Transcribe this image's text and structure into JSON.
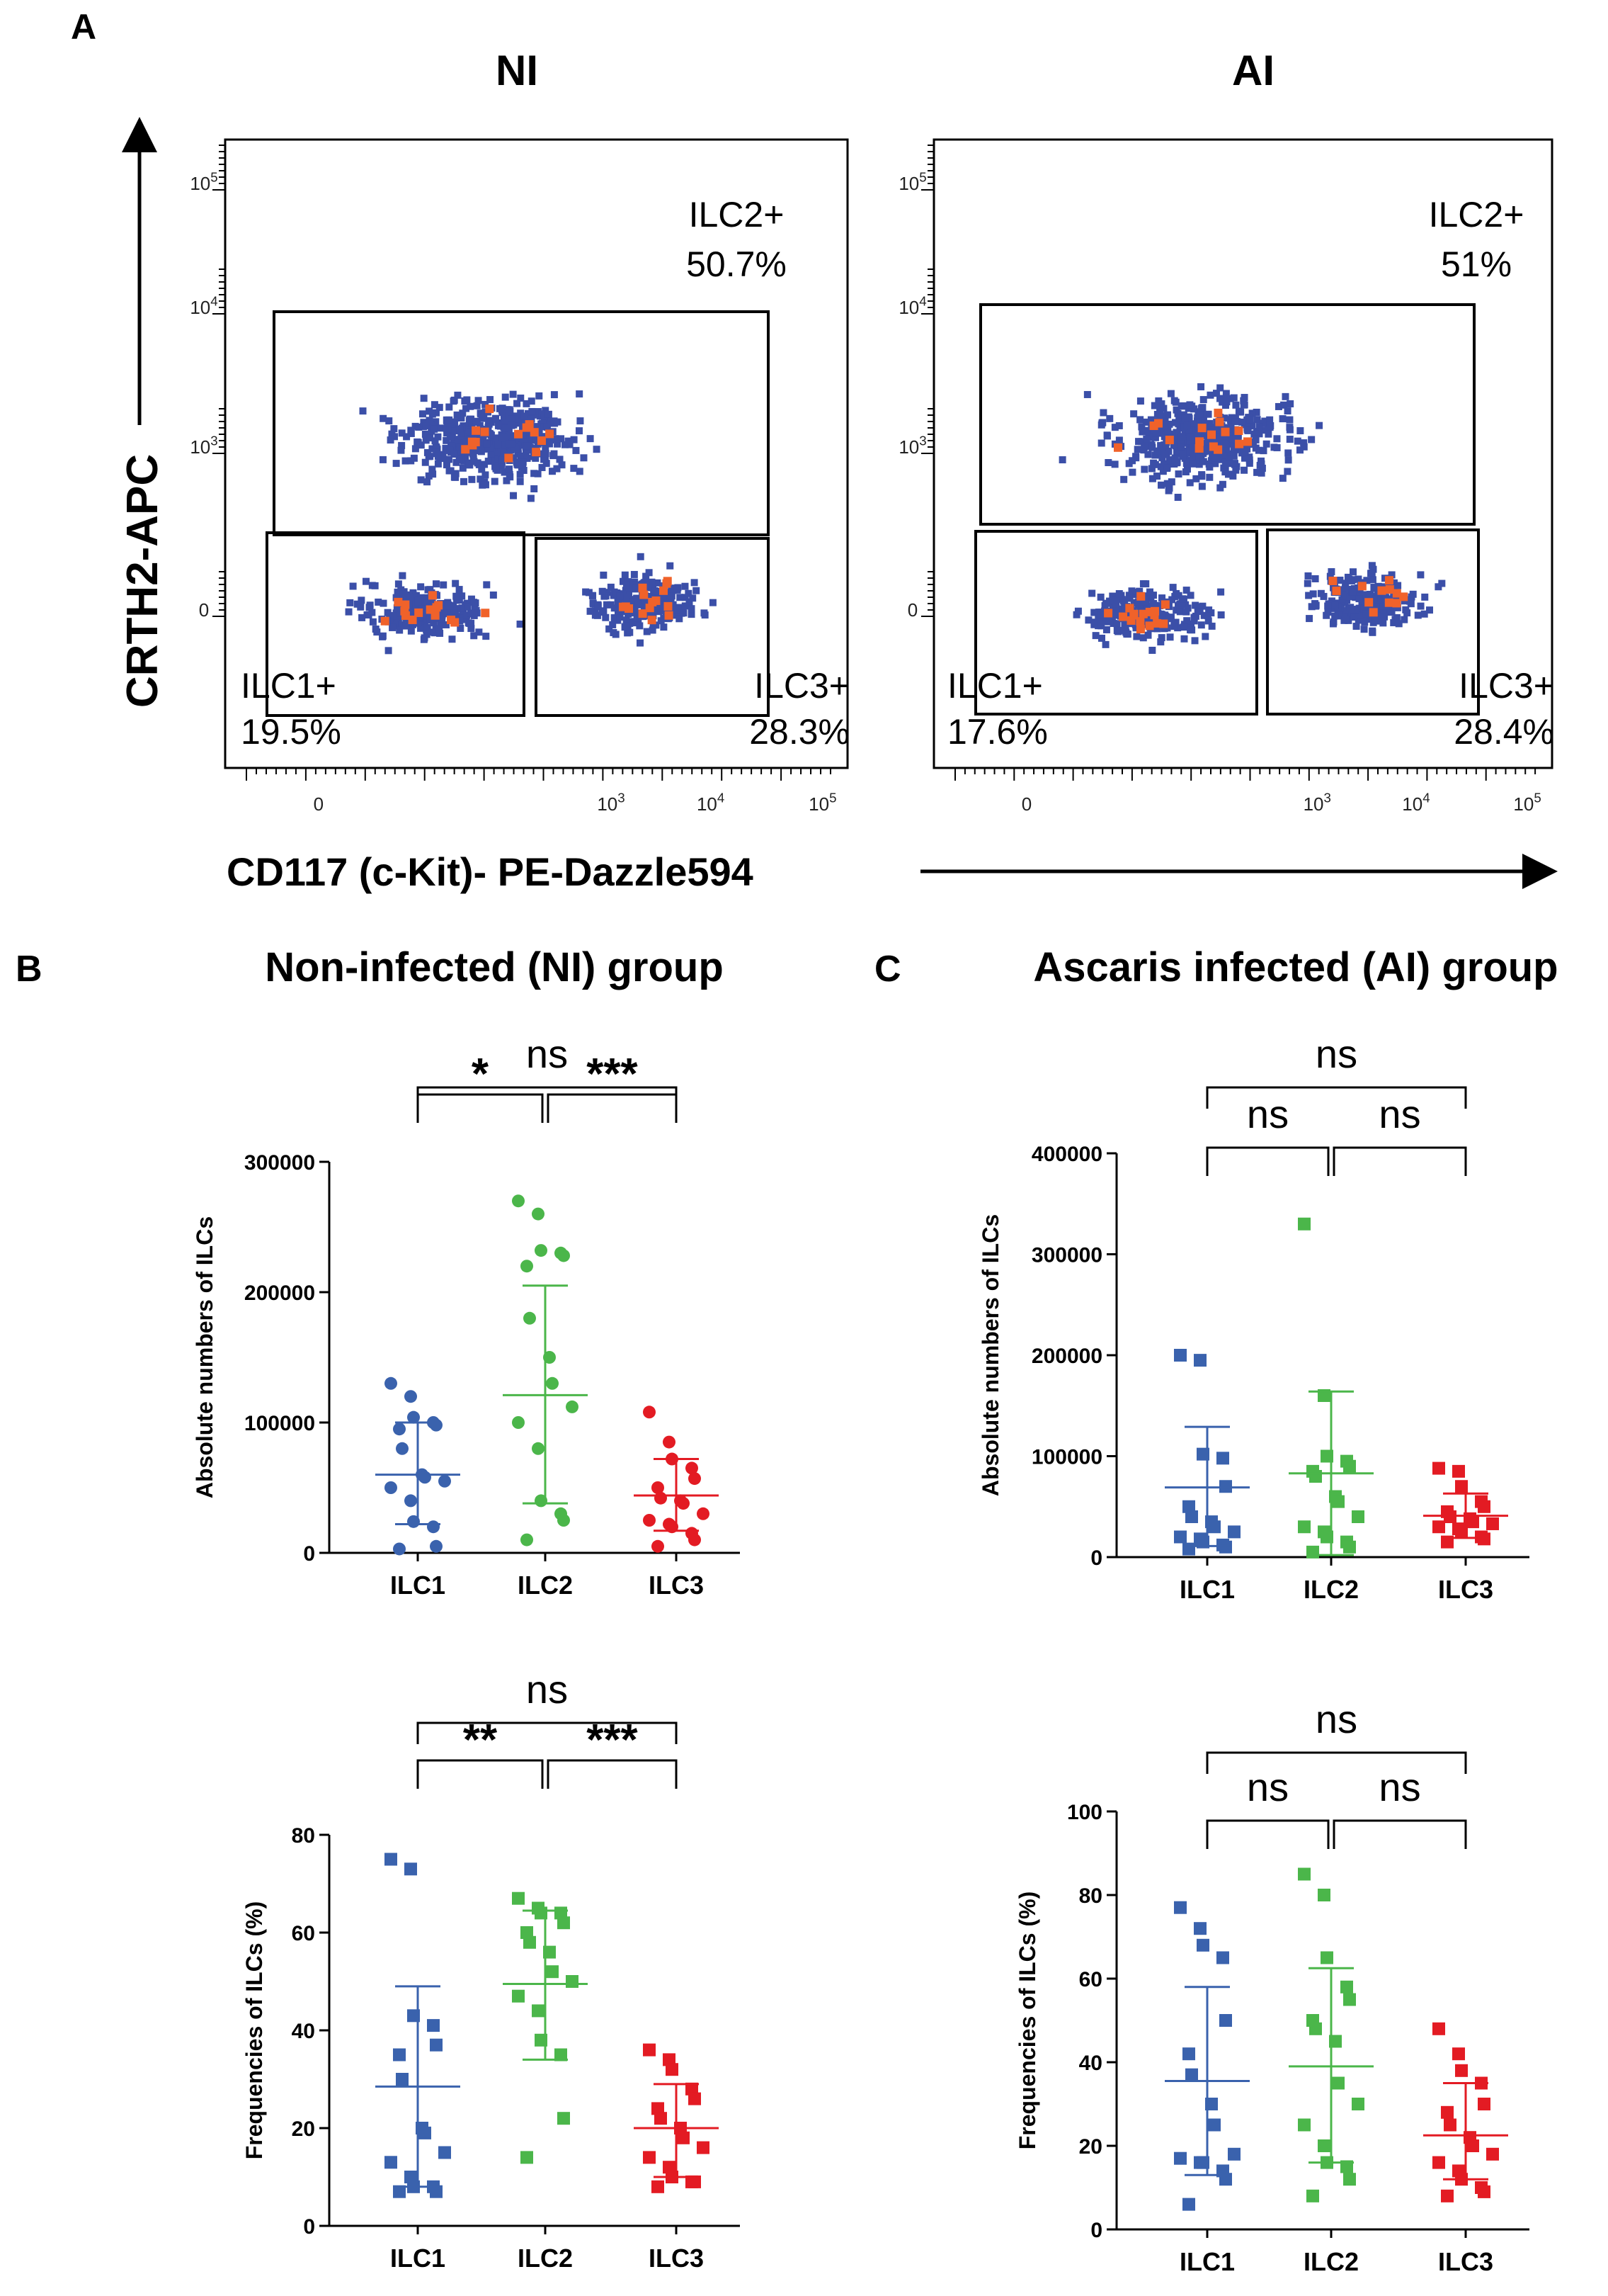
{
  "figure": {
    "panel_letters": {
      "a": "A",
      "b": "B",
      "c": "C"
    },
    "flow": {
      "titles": [
        "NI",
        "AI"
      ],
      "ylabel": "CRTH2-APC",
      "xlabel": "CD117 (c-Kit)- PE-Dazzle594",
      "tick_labels": [
        "10^5",
        "10^4",
        "10^3",
        "0"
      ],
      "x_tick_labels": [
        "0",
        "10^3",
        "10^4",
        "10^5"
      ]
    },
    "titles": {
      "b": "Non-infected (NI) group",
      "c": "Ascaris infected (AI) group"
    },
    "colors": {
      "ILC1": "#3a62ad",
      "ILC2": "#4bb64a",
      "ILC3": "#e31b23",
      "flow_blue": "#3b4fa8",
      "flow_orange": "#f0622a"
    }
  },
  "chart_data": [
    {
      "type": "flow-cytometry",
      "panel": "A",
      "title": "NI",
      "xlabel": "CD117 (c-Kit)- PE-Dazzle594",
      "ylabel": "CRTH2-APC",
      "gates": [
        {
          "name": "ILC2+",
          "percent": "50.7%"
        },
        {
          "name": "ILC1+",
          "percent": "19.5%"
        },
        {
          "name": "ILC3+",
          "percent": "28.3%"
        }
      ]
    },
    {
      "type": "flow-cytometry",
      "panel": "A",
      "title": "AI",
      "xlabel": "CD117 (c-Kit)- PE-Dazzle594",
      "ylabel": "CRTH2-APC",
      "gates": [
        {
          "name": "ILC2+",
          "percent": "51%"
        },
        {
          "name": "ILC1+",
          "percent": "17.6%"
        },
        {
          "name": "ILC3+",
          "percent": "28.4%"
        }
      ]
    },
    {
      "type": "scatter",
      "panel": "B",
      "group_title": "Non-infected (NI) group",
      "ylabel": "Absolute numbers of ILCs",
      "ylim": [
        0,
        300000
      ],
      "yticks": [
        0,
        100000,
        200000,
        300000
      ],
      "categories": [
        "ILC1",
        "ILC2",
        "ILC3"
      ],
      "marker": "circle",
      "series": [
        {
          "name": "ILC1",
          "values": [
            130000,
            120000,
            104000,
            100000,
            98000,
            95000,
            80000,
            60000,
            58000,
            55000,
            50000,
            40000,
            24000,
            20000,
            5000,
            3000
          ],
          "mean": 60000,
          "sd_low": 22000,
          "sd_high": 100000
        },
        {
          "name": "ILC2",
          "values": [
            270000,
            260000,
            232000,
            230000,
            228000,
            220000,
            180000,
            150000,
            130000,
            112000,
            100000,
            80000,
            40000,
            30000,
            25000,
            10000
          ],
          "mean": 121000,
          "sd_low": 38000,
          "sd_high": 205000
        },
        {
          "name": "ILC3",
          "values": [
            108000,
            85000,
            72000,
            65000,
            57000,
            50000,
            42000,
            40000,
            38000,
            30000,
            25000,
            22000,
            20000,
            15000,
            10000,
            5000
          ],
          "mean": 44000,
          "sd_low": 17000,
          "sd_high": 72000
        }
      ],
      "comparisons": [
        {
          "pair": [
            "ILC1",
            "ILC2"
          ],
          "label": "*"
        },
        {
          "pair": [
            "ILC2",
            "ILC3"
          ],
          "label": "***"
        },
        {
          "pair": [
            "ILC1",
            "ILC3"
          ],
          "label": "ns"
        }
      ]
    },
    {
      "type": "scatter",
      "panel": "B",
      "group_title": "Non-infected (NI) group",
      "ylabel": "Frequencies of ILCs (%)",
      "ylim": [
        0,
        80
      ],
      "yticks": [
        0,
        20,
        40,
        60,
        80
      ],
      "categories": [
        "ILC1",
        "ILC2",
        "ILC3"
      ],
      "marker": "square",
      "series": [
        {
          "name": "ILC1",
          "values": [
            75,
            73,
            43,
            41,
            37,
            35,
            30,
            20,
            19,
            15,
            13,
            10,
            8,
            8,
            7,
            7
          ],
          "mean": 28.5,
          "sd_low": 8,
          "sd_high": 49
        },
        {
          "name": "ILC2",
          "values": [
            67,
            65,
            64,
            64,
            62,
            60,
            58,
            56,
            52,
            50,
            47,
            44,
            38,
            35,
            22,
            14
          ],
          "mean": 49.5,
          "sd_low": 34,
          "sd_high": 64.5
        },
        {
          "name": "ILC3",
          "values": [
            36,
            34,
            32,
            28,
            26,
            24,
            22,
            20,
            18,
            16,
            14,
            12,
            10,
            9,
            9,
            8
          ],
          "mean": 20,
          "sd_low": 10,
          "sd_high": 29
        }
      ],
      "comparisons": [
        {
          "pair": [
            "ILC1",
            "ILC2"
          ],
          "label": "**"
        },
        {
          "pair": [
            "ILC2",
            "ILC3"
          ],
          "label": "***"
        },
        {
          "pair": [
            "ILC1",
            "ILC3"
          ],
          "label": "ns"
        }
      ]
    },
    {
      "type": "scatter",
      "panel": "C",
      "group_title": "Ascaris infected (AI) group",
      "ylabel": "Absolute numbers of ILCs",
      "ylim": [
        0,
        400000
      ],
      "yticks": [
        0,
        100000,
        200000,
        300000,
        400000
      ],
      "categories": [
        "ILC1",
        "ILC2",
        "ILC3"
      ],
      "marker": "square",
      "series": [
        {
          "name": "ILC1",
          "values": [
            200000,
            195000,
            102000,
            98000,
            70000,
            50000,
            40000,
            35000,
            30000,
            25000,
            20000,
            18000,
            15000,
            12000,
            10000,
            8000
          ],
          "mean": 69000,
          "sd_low": 11000,
          "sd_high": 129000
        },
        {
          "name": "ILC2",
          "values": [
            330000,
            160000,
            100000,
            95000,
            90000,
            85000,
            80000,
            60000,
            55000,
            40000,
            30000,
            25000,
            20000,
            15000,
            10000,
            5000
          ],
          "mean": 83000,
          "sd_low": 2000,
          "sd_high": 164000
        },
        {
          "name": "ILC3",
          "values": [
            88000,
            85000,
            70000,
            55000,
            50000,
            45000,
            40000,
            38000,
            35000,
            33000,
            30000,
            28000,
            25000,
            20000,
            18000,
            15000
          ],
          "mean": 41000,
          "sd_low": 19000,
          "sd_high": 63000
        }
      ],
      "comparisons": [
        {
          "pair": [
            "ILC1",
            "ILC2"
          ],
          "label": "ns"
        },
        {
          "pair": [
            "ILC2",
            "ILC3"
          ],
          "label": "ns"
        },
        {
          "pair": [
            "ILC1",
            "ILC3"
          ],
          "label": "ns"
        }
      ]
    },
    {
      "type": "scatter",
      "panel": "C",
      "group_title": "Ascaris infected (AI) group",
      "ylabel": "Frequencies of ILCs (%)",
      "ylim": [
        0,
        100
      ],
      "yticks": [
        0,
        20,
        40,
        60,
        80,
        100
      ],
      "categories": [
        "ILC1",
        "ILC2",
        "ILC3"
      ],
      "marker": "square",
      "series": [
        {
          "name": "ILC1",
          "values": [
            77,
            72,
            68,
            65,
            50,
            42,
            37,
            30,
            25,
            18,
            17,
            16,
            16,
            14,
            12,
            6
          ],
          "mean": 35.5,
          "sd_low": 13,
          "sd_high": 58
        },
        {
          "name": "ILC2",
          "values": [
            85,
            80,
            65,
            58,
            55,
            50,
            48,
            45,
            35,
            30,
            25,
            20,
            16,
            15,
            12,
            8
          ],
          "mean": 39,
          "sd_low": 16,
          "sd_high": 62.5
        },
        {
          "name": "ILC3",
          "values": [
            48,
            42,
            38,
            35,
            30,
            28,
            25,
            22,
            20,
            18,
            16,
            14,
            12,
            10,
            9,
            8
          ],
          "mean": 22.5,
          "sd_low": 12,
          "sd_high": 35
        }
      ],
      "comparisons": [
        {
          "pair": [
            "ILC1",
            "ILC2"
          ],
          "label": "ns"
        },
        {
          "pair": [
            "ILC2",
            "ILC3"
          ],
          "label": "ns"
        },
        {
          "pair": [
            "ILC1",
            "ILC3"
          ],
          "label": "ns"
        }
      ]
    }
  ]
}
